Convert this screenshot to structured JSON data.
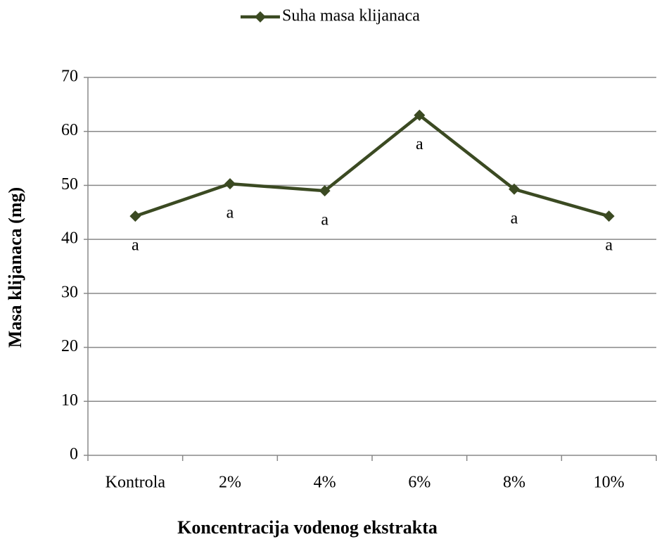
{
  "chart_data": {
    "type": "line",
    "legend": "top",
    "x_label": "Koncentracija vodenog ekstrakta",
    "y_label": "Masa klijanaca (mg)",
    "categories": [
      "Kontrola",
      "2%",
      "4%",
      "6%",
      "8%",
      "10%"
    ],
    "series": [
      {
        "name": "Suha masa klijanaca",
        "color": "#3b4a22",
        "values": [
          44.3,
          50.3,
          49,
          63,
          49.3,
          44.3
        ]
      }
    ],
    "annotations": [
      "a",
      "a",
      "a",
      "a",
      "a",
      "a"
    ],
    "ylim": [
      0,
      70
    ],
    "yticks": [
      0,
      10,
      20,
      30,
      40,
      50,
      60,
      70
    ],
    "grid": true
  }
}
